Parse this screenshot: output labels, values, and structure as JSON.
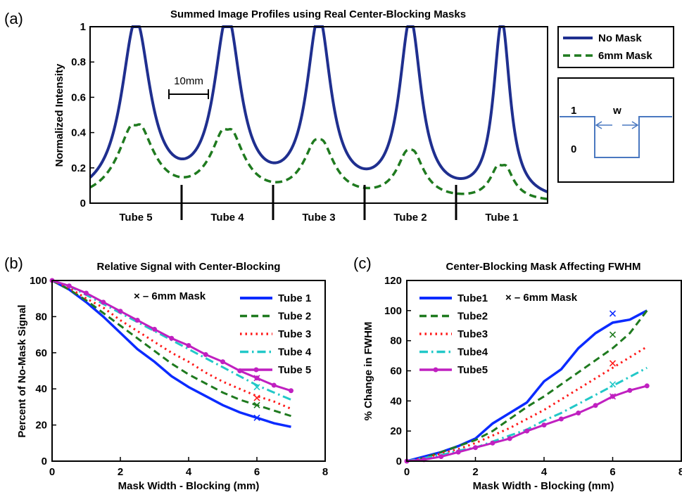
{
  "figure": {
    "panel_labels": [
      "(a)",
      "(b)",
      "(c)"
    ]
  },
  "chart_data": [
    {
      "panel": "(a)",
      "type": "line",
      "title": "Summed Image Profiles using Real Center-Blocking Masks",
      "xlabel": "",
      "ylabel": "Normalized Intensity",
      "xlim": [
        0,
        100
      ],
      "ylim": [
        0,
        1
      ],
      "yticks": [
        0,
        0.2,
        0.4,
        0.6,
        0.8,
        1
      ],
      "ytick_labels": [
        "0",
        "0.2",
        "0.4",
        "0.6",
        "0.8",
        "1"
      ],
      "tube_labels": [
        "Tube 5",
        "Tube 4",
        "Tube 3",
        "Tube 2",
        "Tube 1"
      ],
      "tube_centers": [
        10,
        30,
        50,
        70,
        90
      ],
      "dividers": [
        20,
        40,
        60,
        80
      ],
      "scale_bar_label": "10mm",
      "peaks": {
        "centers": [
          10,
          30,
          50,
          70,
          90
        ],
        "no_mask_height": [
          1,
          1,
          1,
          1,
          1
        ],
        "no_mask_width": [
          3.8,
          3.5,
          3.2,
          2.9,
          2.2
        ],
        "mask_height": [
          0.45,
          0.41,
          0.35,
          0.3,
          0.24
        ],
        "mask_width": [
          4.6,
          4.2,
          3.8,
          3.3,
          2.6
        ],
        "mask_dip": [
          0.03,
          0.03,
          0.02,
          0.02,
          0.04
        ]
      },
      "series": [
        {
          "name": "No Mask",
          "color": "#1f2f8f",
          "style": "solid"
        },
        {
          "name": "6mm Mask",
          "color": "#1f7a1f",
          "style": "dashed"
        }
      ],
      "legend_position": "outside-right",
      "inset": {
        "level_high": "1",
        "level_low": "0",
        "width_label": "w",
        "color": "#4a78c0"
      }
    },
    {
      "panel": "(b)",
      "type": "line",
      "title": "Relative Signal with Center-Blocking",
      "xlabel": "Mask Width - Blocking (mm)",
      "ylabel": "Percent of No-Mask Signal",
      "xlim": [
        0,
        8
      ],
      "ylim": [
        0,
        100
      ],
      "xticks": [
        0,
        2,
        4,
        6,
        8
      ],
      "yticks": [
        0,
        20,
        40,
        60,
        80,
        100
      ],
      "x": [
        0,
        0.5,
        1,
        1.5,
        2,
        2.5,
        3,
        3.5,
        4,
        4.5,
        5,
        5.5,
        6,
        6.5,
        7
      ],
      "series": [
        {
          "name": "Tube 1",
          "color": "#0b2bff",
          "style": "solid",
          "values": [
            100,
            95,
            88,
            80,
            71,
            62,
            55,
            47,
            41,
            36,
            31,
            27,
            24,
            21,
            19
          ]
        },
        {
          "name": "Tube 2",
          "color": "#1f7a1f",
          "style": "dashed",
          "values": [
            100,
            95,
            89,
            82,
            75,
            68,
            61,
            54,
            48,
            43,
            38,
            34,
            31,
            28,
            25
          ]
        },
        {
          "name": "Tube 3",
          "color": "#ff1a1a",
          "style": "dotted",
          "values": [
            100,
            96,
            90,
            85,
            78,
            72,
            66,
            60,
            55,
            49,
            44,
            40,
            36,
            33,
            29
          ]
        },
        {
          "name": "Tube 4",
          "color": "#22c8c8",
          "style": "dashdot",
          "values": [
            100,
            97,
            92,
            87,
            82,
            77,
            72,
            67,
            62,
            57,
            52,
            47,
            42,
            38,
            34
          ]
        },
        {
          "name": "Tube 5",
          "color": "#c020c0",
          "style": "solid-markers",
          "values": [
            100,
            97,
            93,
            88,
            83,
            78,
            73,
            68,
            64,
            59,
            55,
            50,
            46,
            42,
            39
          ]
        }
      ],
      "mask_points": {
        "label": "× – 6mm Mask",
        "x": 6,
        "values": [
          24,
          31,
          35,
          41,
          46
        ]
      },
      "legend_position": "top-right"
    },
    {
      "panel": "(c)",
      "type": "line",
      "title": "Center-Blocking Mask Affecting FWHM",
      "xlabel": "Mask Width - Blocking (mm)",
      "ylabel": "% Change in FWHM",
      "xlim": [
        0,
        8
      ],
      "ylim": [
        0,
        120
      ],
      "xticks": [
        0,
        2,
        4,
        6,
        8
      ],
      "yticks": [
        0,
        20,
        40,
        60,
        80,
        100,
        120
      ],
      "x": [
        0,
        0.5,
        1,
        1.5,
        2,
        2.5,
        3,
        3.5,
        4,
        4.5,
        5,
        5.5,
        6,
        6.5,
        7
      ],
      "series": [
        {
          "name": "Tube1",
          "color": "#0b2bff",
          "style": "solid",
          "values": [
            0,
            3,
            6,
            10,
            15,
            25,
            32,
            39,
            53,
            61,
            75,
            85,
            92,
            94,
            100
          ]
        },
        {
          "name": "Tube2",
          "color": "#1f7a1f",
          "style": "dashed",
          "values": [
            0,
            2,
            6,
            10,
            14,
            20,
            28,
            36,
            43,
            51,
            59,
            67,
            75,
            85,
            100
          ]
        },
        {
          "name": "Tube3",
          "color": "#ff1a1a",
          "style": "dotted",
          "values": [
            0,
            2,
            5,
            8,
            12,
            17,
            22,
            28,
            34,
            41,
            48,
            55,
            62,
            69,
            76
          ]
        },
        {
          "name": "Tube4",
          "color": "#22c8c8",
          "style": "dashdot",
          "values": [
            0,
            2,
            4,
            7,
            9,
            13,
            17,
            21,
            27,
            32,
            38,
            44,
            50,
            56,
            62
          ]
        },
        {
          "name": "Tube5",
          "color": "#c020c0",
          "style": "solid-markers",
          "values": [
            0,
            1,
            3,
            6,
            9,
            12,
            15,
            20,
            24,
            28,
            32,
            37,
            43,
            47,
            50
          ]
        }
      ],
      "mask_points": {
        "label": "× – 6mm Mask",
        "x": 6,
        "values": [
          98,
          84,
          65,
          51,
          43
        ]
      },
      "legend_position": "top-left"
    }
  ]
}
